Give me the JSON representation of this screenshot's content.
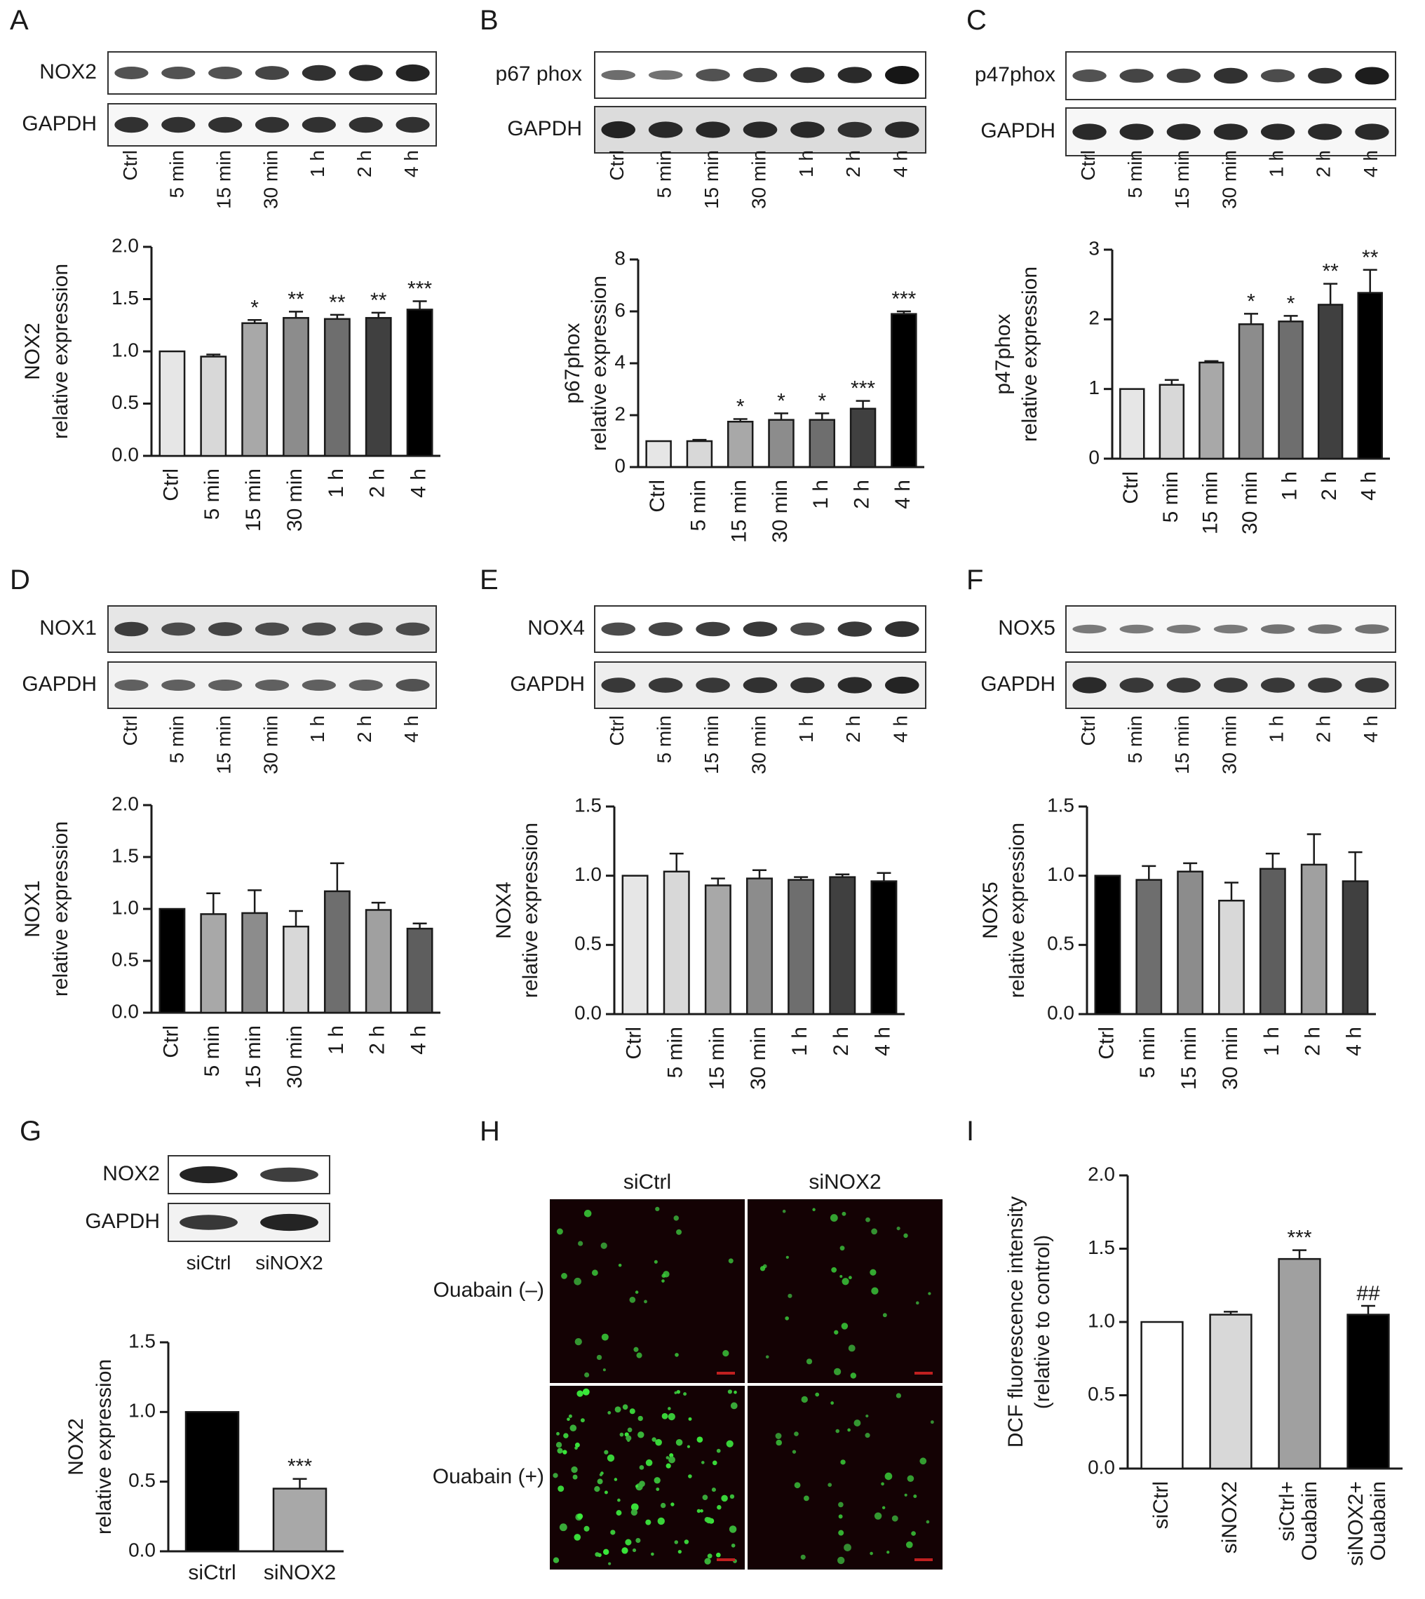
{
  "panel_letters": [
    "A",
    "B",
    "C",
    "D",
    "E",
    "F",
    "G",
    "H",
    "I"
  ],
  "blot_lanes": [
    "Ctrl",
    "5 min",
    "15 min",
    "30 min",
    "1 h",
    "2 h",
    "4 h"
  ],
  "blots": [
    {
      "rows": [
        {
          "label": "NOX2",
          "intensity": [
            0.55,
            0.55,
            0.55,
            0.65,
            0.8,
            0.85,
            0.9
          ],
          "bg": "#ffffff"
        },
        {
          "label": "GAPDH",
          "intensity": [
            0.8,
            0.8,
            0.8,
            0.8,
            0.8,
            0.8,
            0.8
          ],
          "bg": "#f7f7f7"
        }
      ]
    },
    {
      "rows": [
        {
          "label": "p67 phox",
          "intensity": [
            0.35,
            0.3,
            0.55,
            0.7,
            0.8,
            0.85,
            1.0
          ],
          "bg": "#ffffff"
        },
        {
          "label": "GAPDH",
          "intensity": [
            0.9,
            0.85,
            0.85,
            0.85,
            0.85,
            0.8,
            0.85
          ],
          "bg": "#dcdcdc"
        }
      ]
    },
    {
      "rows": [
        {
          "label": "p47phox",
          "intensity": [
            0.55,
            0.65,
            0.7,
            0.8,
            0.6,
            0.8,
            0.95
          ],
          "bg": "#ffffff"
        },
        {
          "label": "GAPDH",
          "intensity": [
            0.85,
            0.85,
            0.85,
            0.85,
            0.85,
            0.85,
            0.85
          ],
          "bg": "#f7f7f7"
        }
      ]
    },
    {
      "rows": [
        {
          "label": "NOX1",
          "intensity": [
            0.7,
            0.6,
            0.65,
            0.6,
            0.6,
            0.6,
            0.6
          ],
          "bg": "#e6e6e6"
        },
        {
          "label": "GAPDH",
          "intensity": [
            0.45,
            0.45,
            0.45,
            0.45,
            0.45,
            0.45,
            0.55
          ],
          "bg": "#f2f2f2"
        }
      ]
    },
    {
      "rows": [
        {
          "label": "NOX4",
          "intensity": [
            0.6,
            0.65,
            0.7,
            0.75,
            0.6,
            0.75,
            0.8
          ],
          "bg": "#ffffff"
        },
        {
          "label": "GAPDH",
          "intensity": [
            0.75,
            0.75,
            0.75,
            0.8,
            0.8,
            0.85,
            0.9
          ],
          "bg": "#eeeeee"
        }
      ]
    },
    {
      "rows": [
        {
          "label": "NOX5",
          "intensity": [
            0.25,
            0.25,
            0.25,
            0.25,
            0.3,
            0.3,
            0.3
          ],
          "bg": "#f6f6f6"
        },
        {
          "label": "GAPDH",
          "intensity": [
            0.85,
            0.75,
            0.75,
            0.75,
            0.75,
            0.75,
            0.75
          ],
          "bg": "#eeeeee"
        }
      ]
    }
  ],
  "blot_g": {
    "lanes": [
      "siCtrl",
      "siNOX2"
    ],
    "rows": [
      {
        "label": "NOX2",
        "intensity": [
          0.9,
          0.7
        ],
        "bg": "#ffffff"
      },
      {
        "label": "GAPDH",
        "intensity": [
          0.75,
          0.9
        ],
        "bg": "#f2f2f2"
      }
    ]
  },
  "micrograph": {
    "columns": [
      "siCtrl",
      "siNOX2"
    ],
    "rows": [
      "Ouabain (–)",
      "Ouabain (+)"
    ]
  },
  "chart_data": [
    {
      "panel": "A",
      "type": "bar",
      "categories": [
        "Ctrl",
        "5 min",
        "15 min",
        "30 min",
        "1 h",
        "2 h",
        "4 h"
      ],
      "values": [
        1.0,
        0.95,
        1.27,
        1.32,
        1.31,
        1.32,
        1.4
      ],
      "errors": [
        0,
        0.02,
        0.03,
        0.06,
        0.04,
        0.05,
        0.08
      ],
      "significance": [
        "",
        "",
        "*",
        "**",
        "**",
        "**",
        "***"
      ],
      "colors": [
        "#e6e6e6",
        "#d8d8d8",
        "#a8a8a8",
        "#8c8c8c",
        "#6e6e6e",
        "#404040",
        "#000000"
      ],
      "ylabel": [
        "NOX2",
        "relative expression"
      ],
      "ylim": [
        0,
        2.0
      ],
      "yticks": [
        0.0,
        0.5,
        1.0,
        1.5,
        2.0
      ],
      "ytick_labels": [
        "0.0",
        "0.5",
        "1.0",
        "1.5",
        "2.0"
      ]
    },
    {
      "panel": "B",
      "type": "bar",
      "categories": [
        "Ctrl",
        "5 min",
        "15 min",
        "30 min",
        "1 h",
        "2 h",
        "4 h"
      ],
      "values": [
        1.0,
        1.0,
        1.75,
        1.82,
        1.82,
        2.25,
        5.9
      ],
      "errors": [
        0,
        0.05,
        0.1,
        0.25,
        0.25,
        0.3,
        0.1
      ],
      "significance": [
        "",
        "",
        "*",
        "*",
        "*",
        "***",
        "***"
      ],
      "colors": [
        "#e6e6e6",
        "#d8d8d8",
        "#a8a8a8",
        "#8c8c8c",
        "#6e6e6e",
        "#404040",
        "#000000"
      ],
      "ylabel": [
        "p67phox",
        "relative expression"
      ],
      "ylim": [
        0,
        8
      ],
      "yticks": [
        0,
        2,
        4,
        6,
        8
      ],
      "ytick_labels": [
        "0",
        "2",
        "4",
        "6",
        "8"
      ]
    },
    {
      "panel": "C",
      "type": "bar",
      "categories": [
        "Ctrl",
        "5 min",
        "15 min",
        "30 min",
        "1 h",
        "2 h",
        "4 h"
      ],
      "values": [
        1.0,
        1.06,
        1.38,
        1.93,
        1.97,
        2.21,
        2.38
      ],
      "errors": [
        0,
        0.07,
        0.02,
        0.15,
        0.08,
        0.3,
        0.33
      ],
      "significance": [
        "",
        "",
        "",
        "*",
        "*",
        "**",
        "**"
      ],
      "colors": [
        "#e6e6e6",
        "#d8d8d8",
        "#a8a8a8",
        "#8c8c8c",
        "#6e6e6e",
        "#404040",
        "#000000"
      ],
      "ylabel": [
        "p47phox",
        "relative expression"
      ],
      "ylim": [
        0,
        3
      ],
      "yticks": [
        0,
        1,
        2,
        3
      ],
      "ytick_labels": [
        "0",
        "1",
        "2",
        "3"
      ]
    },
    {
      "panel": "D",
      "type": "bar",
      "categories": [
        "Ctrl",
        "5 min",
        "15 min",
        "30 min",
        "1 h",
        "2 h",
        "4 h"
      ],
      "values": [
        1.0,
        0.95,
        0.96,
        0.83,
        1.17,
        0.99,
        0.81
      ],
      "errors": [
        0,
        0.2,
        0.22,
        0.15,
        0.27,
        0.07,
        0.05
      ],
      "significance": [
        "",
        "",
        "",
        "",
        "",
        "",
        ""
      ],
      "colors": [
        "#000000",
        "#a8a8a8",
        "#8c8c8c",
        "#d8d8d8",
        "#6e6e6e",
        "#a0a0a0",
        "#5e5e5e"
      ],
      "ylabel": [
        "NOX1",
        "relative expression"
      ],
      "ylim": [
        0,
        2.0
      ],
      "yticks": [
        0.0,
        0.5,
        1.0,
        1.5,
        2.0
      ],
      "ytick_labels": [
        "0.0",
        "0.5",
        "1.0",
        "1.5",
        "2.0"
      ]
    },
    {
      "panel": "E",
      "type": "bar",
      "categories": [
        "Ctrl",
        "5 min",
        "15 min",
        "30 min",
        "1 h",
        "2 h",
        "4 h"
      ],
      "values": [
        1.0,
        1.03,
        0.93,
        0.98,
        0.97,
        0.99,
        0.96
      ],
      "errors": [
        0,
        0.13,
        0.05,
        0.06,
        0.02,
        0.02,
        0.06
      ],
      "significance": [
        "",
        "",
        "",
        "",
        "",
        "",
        ""
      ],
      "colors": [
        "#e6e6e6",
        "#d8d8d8",
        "#a8a8a8",
        "#8c8c8c",
        "#6e6e6e",
        "#404040",
        "#000000"
      ],
      "ylabel": [
        "NOX4",
        "relative expression"
      ],
      "ylim": [
        0,
        1.5
      ],
      "yticks": [
        0.0,
        0.5,
        1.0,
        1.5
      ],
      "ytick_labels": [
        "0.0",
        "0.5",
        "1.0",
        "1.5"
      ]
    },
    {
      "panel": "F",
      "type": "bar",
      "categories": [
        "Ctrl",
        "5 min",
        "15 min",
        "30 min",
        "1 h",
        "2 h",
        "4 h"
      ],
      "values": [
        1.0,
        0.97,
        1.03,
        0.82,
        1.05,
        1.08,
        0.96
      ],
      "errors": [
        0,
        0.1,
        0.06,
        0.13,
        0.11,
        0.22,
        0.21
      ],
      "significance": [
        "",
        "",
        "",
        "",
        "",
        "",
        ""
      ],
      "colors": [
        "#000000",
        "#6e6e6e",
        "#8c8c8c",
        "#d8d8d8",
        "#5e5e5e",
        "#a0a0a0",
        "#404040"
      ],
      "ylabel": [
        "NOX5",
        "relative expression"
      ],
      "ylim": [
        0,
        1.5
      ],
      "yticks": [
        0.0,
        0.5,
        1.0,
        1.5
      ],
      "ytick_labels": [
        "0.0",
        "0.5",
        "1.0",
        "1.5"
      ]
    },
    {
      "panel": "G",
      "type": "bar",
      "categories": [
        "siCtrl",
        "siNOX2"
      ],
      "values": [
        1.0,
        0.45
      ],
      "errors": [
        0,
        0.07
      ],
      "significance": [
        "",
        "***"
      ],
      "colors": [
        "#000000",
        "#a8a8a8"
      ],
      "ylabel": [
        "NOX2",
        "relative expression"
      ],
      "ylim": [
        0,
        1.5
      ],
      "yticks": [
        0.0,
        0.5,
        1.0,
        1.5
      ],
      "ytick_labels": [
        "0.0",
        "0.5",
        "1.0",
        "1.5"
      ]
    },
    {
      "panel": "I",
      "type": "bar",
      "categories": [
        "siCtrl",
        "siNOX2",
        "siCtrl+\nOuabain",
        "siNOX2+\nOuabain"
      ],
      "values": [
        1.0,
        1.05,
        1.43,
        1.05
      ],
      "errors": [
        0,
        0.02,
        0.06,
        0.06
      ],
      "significance": [
        "",
        "",
        "***",
        "##"
      ],
      "colors": [
        "#ffffff",
        "#d8d8d8",
        "#a0a0a0",
        "#000000"
      ],
      "ylabel": [
        "DCF fluorescence intensity",
        "(relative to control)"
      ],
      "ylim": [
        0,
        2.0
      ],
      "yticks": [
        0.0,
        0.5,
        1.0,
        1.5,
        2.0
      ],
      "ytick_labels": [
        "0.0",
        "0.5",
        "1.0",
        "1.5",
        "2.0"
      ]
    }
  ]
}
